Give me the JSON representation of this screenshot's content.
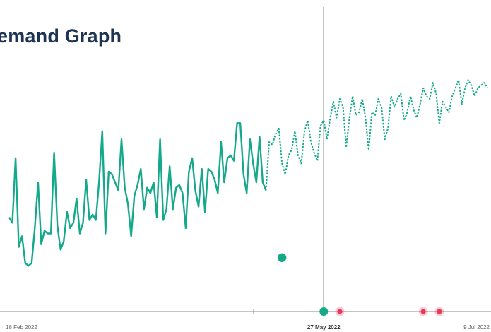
{
  "title": "emand Graph",
  "colors": {
    "series": "#14a98b",
    "marker_green": "#15a988",
    "marker_pink": "#e8395c",
    "axis": "#8a8a8a",
    "cursor": "#555555",
    "title": "#1d3553"
  },
  "chart_data": {
    "type": "line",
    "title": "emand Graph",
    "xlabel": "",
    "ylabel": "",
    "x_range": [
      "2022-02-18",
      "2022-07-17"
    ],
    "y_range": [
      0,
      100
    ],
    "x_tick_labels": [
      "18 Feb 2022",
      "27 May 2022",
      "9 Jul 2022"
    ],
    "highlight_tick": "27 May 2022",
    "cursor_date": "2022-05-27",
    "grid": false,
    "legend": "none",
    "series": [
      {
        "style": "solid",
        "x": [
          "2022-02-18",
          "2022-02-19",
          "2022-02-20",
          "2022-02-21",
          "2022-02-22",
          "2022-02-23",
          "2022-02-24",
          "2022-02-25",
          "2022-02-26",
          "2022-02-27",
          "2022-02-28",
          "2022-03-01",
          "2022-03-02",
          "2022-03-03",
          "2022-03-04",
          "2022-03-05",
          "2022-03-06",
          "2022-03-07",
          "2022-03-08",
          "2022-03-09",
          "2022-03-10",
          "2022-03-11",
          "2022-03-12",
          "2022-03-13",
          "2022-03-14",
          "2022-03-15",
          "2022-03-16",
          "2022-03-17",
          "2022-03-18",
          "2022-03-19",
          "2022-03-20",
          "2022-03-21",
          "2022-03-22",
          "2022-03-23",
          "2022-03-24",
          "2022-03-25",
          "2022-03-26",
          "2022-03-27",
          "2022-03-28",
          "2022-03-29",
          "2022-03-30",
          "2022-03-31",
          "2022-04-01",
          "2022-04-02",
          "2022-04-03",
          "2022-04-04",
          "2022-04-05",
          "2022-04-06",
          "2022-04-07",
          "2022-04-08",
          "2022-04-09",
          "2022-04-10",
          "2022-04-11",
          "2022-04-12",
          "2022-04-13",
          "2022-04-14",
          "2022-04-15",
          "2022-04-16",
          "2022-04-17",
          "2022-04-18",
          "2022-04-19",
          "2022-04-20",
          "2022-04-21",
          "2022-04-22",
          "2022-04-23",
          "2022-04-24",
          "2022-04-25",
          "2022-04-26",
          "2022-04-27",
          "2022-04-28",
          "2022-04-29",
          "2022-04-30",
          "2022-05-01",
          "2022-05-02",
          "2022-05-03",
          "2022-05-04",
          "2022-05-05",
          "2022-05-06",
          "2022-05-07",
          "2022-05-08",
          "2022-05-09"
        ],
        "y": [
          35,
          33,
          57,
          24,
          28,
          18,
          17,
          18,
          31,
          48,
          25,
          30,
          29,
          29,
          59,
          32,
          23,
          26,
          37,
          31,
          33,
          42,
          29,
          33,
          49,
          34,
          36,
          34,
          48,
          67,
          29,
          52,
          51,
          48,
          45,
          64,
          46,
          40,
          28,
          43,
          47,
          53,
          38,
          46,
          44,
          48,
          35,
          64,
          34,
          38,
          54,
          38,
          46,
          47,
          44,
          31,
          52,
          57,
          45,
          39,
          53,
          37,
          53,
          52,
          49,
          44,
          63,
          48,
          57,
          58,
          56,
          70,
          70,
          51,
          44,
          64,
          55,
          48,
          65,
          48,
          45
        ]
      },
      {
        "style": "dashed",
        "x": [
          "2022-05-09",
          "2022-05-10",
          "2022-05-11",
          "2022-05-12",
          "2022-05-13",
          "2022-05-14",
          "2022-05-15",
          "2022-05-16",
          "2022-05-17",
          "2022-05-18",
          "2022-05-19",
          "2022-05-20",
          "2022-05-21",
          "2022-05-22",
          "2022-05-23",
          "2022-05-24",
          "2022-05-25",
          "2022-05-26",
          "2022-05-27",
          "2022-05-28",
          "2022-05-29",
          "2022-05-30",
          "2022-05-31",
          "2022-06-01",
          "2022-06-02",
          "2022-06-03",
          "2022-06-04",
          "2022-06-05",
          "2022-06-06",
          "2022-06-07",
          "2022-06-08",
          "2022-06-09",
          "2022-06-10",
          "2022-06-11",
          "2022-06-12",
          "2022-06-13",
          "2022-06-14",
          "2022-06-15",
          "2022-06-16",
          "2022-06-17",
          "2022-06-18",
          "2022-06-19",
          "2022-06-20",
          "2022-06-21",
          "2022-06-22",
          "2022-06-23",
          "2022-06-24",
          "2022-06-25",
          "2022-06-26",
          "2022-06-27",
          "2022-06-28",
          "2022-06-29",
          "2022-06-30",
          "2022-07-01",
          "2022-07-02",
          "2022-07-03",
          "2022-07-04",
          "2022-07-05",
          "2022-07-06",
          "2022-07-07",
          "2022-07-08",
          "2022-07-09",
          "2022-07-10",
          "2022-07-11",
          "2022-07-12",
          "2022-07-13",
          "2022-07-14",
          "2022-07-15",
          "2022-07-16",
          "2022-07-17"
        ],
        "y": [
          45,
          63,
          62,
          66,
          68,
          55,
          51,
          58,
          60,
          67,
          58,
          55,
          67,
          71,
          63,
          59,
          56,
          69,
          71,
          64,
          72,
          78,
          72,
          79,
          76,
          61,
          72,
          80,
          73,
          74,
          79,
          72,
          60,
          74,
          73,
          79,
          76,
          64,
          68,
          80,
          76,
          79,
          81,
          71,
          74,
          80,
          75,
          72,
          77,
          83,
          80,
          79,
          85,
          81,
          70,
          78,
          76,
          74,
          80,
          83,
          86,
          77,
          83,
          86,
          84,
          80,
          83,
          84,
          85,
          83
        ]
      }
    ]
  },
  "markers": [
    {
      "date": "2022-05-27",
      "color": "green"
    },
    {
      "date": "2022-06-01",
      "color": "pink"
    },
    {
      "date": "2022-06-27",
      "color": "pink"
    },
    {
      "date": "2022-07-02",
      "color": "pink"
    }
  ],
  "floating_dot": {
    "date": "2022-05-14",
    "value": 20
  }
}
